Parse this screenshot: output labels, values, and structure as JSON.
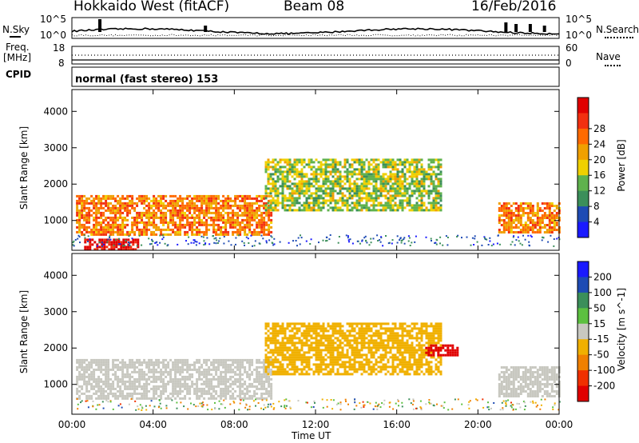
{
  "header": {
    "station": "Hokkaido West (fitACF)",
    "beam": "Beam 08",
    "date": "16/Feb/2016"
  },
  "noise_panel": {
    "left_label": "N.Sky",
    "right_label": "N.Search",
    "left_ticks": [
      "10^5",
      "10^0"
    ],
    "right_ticks": [
      "10^5",
      "10^0"
    ]
  },
  "freq_panel": {
    "left_label_1": "Freq.",
    "left_label_2": "[MHz]",
    "right_label": "Nave",
    "left_ticks": [
      "18",
      "8"
    ],
    "right_ticks": [
      "60",
      "0"
    ]
  },
  "cpid_panel": {
    "label": "CPID",
    "text": "normal (fast stereo) 153"
  },
  "x_axis": {
    "label": "Time UT",
    "ticks": [
      "00:00",
      "04:00",
      "08:00",
      "12:00",
      "16:00",
      "20:00",
      "00:00"
    ]
  },
  "power_panel": {
    "ylabel": "Slant Range [km]",
    "yticks": [
      "1000",
      "2000",
      "3000",
      "4000"
    ],
    "colorbar_label": "Power [dB]",
    "colorbar_ticks": [
      "4",
      "8",
      "12",
      "16",
      "20",
      "24",
      "28"
    ],
    "colors": [
      "#1a1aff",
      "#1e4bb4",
      "#3b8f5a",
      "#5fb24d",
      "#f0d000",
      "#f0a000",
      "#ff6a00",
      "#f23010",
      "#e00000"
    ]
  },
  "velocity_panel": {
    "ylabel": "Slant Range [km]",
    "yticks": [
      "1000",
      "2000",
      "3000",
      "4000"
    ],
    "colorbar_label": "Velocity [m s^-1]",
    "colorbar_ticks": [
      "200",
      "100",
      "50",
      "15",
      "-15",
      "-50",
      "-100",
      "-200"
    ],
    "colors": [
      "#1a1aff",
      "#1e4bb4",
      "#3b8f5a",
      "#5cc040",
      "#c8c8c0",
      "#f0b000",
      "#f08000",
      "#f03000",
      "#e00000"
    ]
  },
  "chart_data": {
    "type": "heatmap",
    "title": "Hokkaido West (fitACF) Beam 08 16/Feb/2016",
    "xlabel": "Time UT",
    "ylabel": "Slant Range [km]",
    "xlim_hours": [
      0,
      24
    ],
    "ylim_km": [
      180,
      4600
    ],
    "grid": false,
    "panels": [
      {
        "quantity": "Power [dB]",
        "color_range": [
          0,
          32
        ],
        "regions": [
          {
            "time_start": 0.2,
            "time_end": 9.8,
            "range_low_km": 600,
            "range_high_km": 1700,
            "value": 22
          },
          {
            "time_start": 0.6,
            "time_end": 3.3,
            "range_low_km": 200,
            "range_high_km": 500,
            "value": 30
          },
          {
            "time_start": 9.5,
            "time_end": 18.2,
            "range_low_km": 1300,
            "range_high_km": 2700,
            "value": 14
          },
          {
            "time_start": 21.0,
            "time_end": 24.0,
            "range_low_km": 650,
            "range_high_km": 1500,
            "value": 22
          }
        ]
      },
      {
        "quantity": "Velocity [m s^-1]",
        "color_range": [
          -250,
          250
        ],
        "regions": [
          {
            "time_start": 0.2,
            "time_end": 9.8,
            "range_low_km": 600,
            "range_high_km": 1700,
            "value": 0
          },
          {
            "time_start": 9.5,
            "time_end": 18.2,
            "range_low_km": 1300,
            "range_high_km": 2700,
            "value": -60
          },
          {
            "time_start": 17.4,
            "time_end": 19.0,
            "range_low_km": 1800,
            "range_high_km": 2100,
            "value": -220
          },
          {
            "time_start": 21.0,
            "time_end": 24.0,
            "range_low_km": 650,
            "range_high_km": 1500,
            "value": 0
          }
        ]
      }
    ]
  }
}
